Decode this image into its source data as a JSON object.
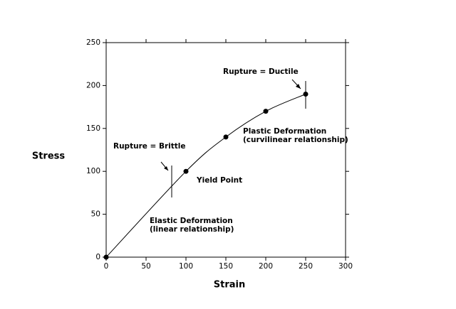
{
  "chart_data": {
    "type": "line",
    "x_label": "Strain",
    "y_label": "Stress",
    "series": [
      {
        "color": "#000000",
        "x": [
          0,
          100,
          150,
          200,
          250
        ],
        "values": [
          0,
          100,
          140,
          170,
          190
        ]
      }
    ],
    "xlim": [
      0,
      300
    ],
    "xticks": [
      0,
      50,
      100,
      150,
      200,
      250,
      300
    ],
    "ylim": [
      0,
      250
    ],
    "yticks": [
      0,
      50,
      100,
      150,
      200,
      250
    ],
    "grid": false,
    "annotations": [
      "Rupture = Ductile",
      "Plastic Deformation",
      "(curvilinear relationship)",
      "Rupture = Brittle",
      "Yield Point",
      "Elastic Deformation",
      "(linear relationship)"
    ]
  }
}
